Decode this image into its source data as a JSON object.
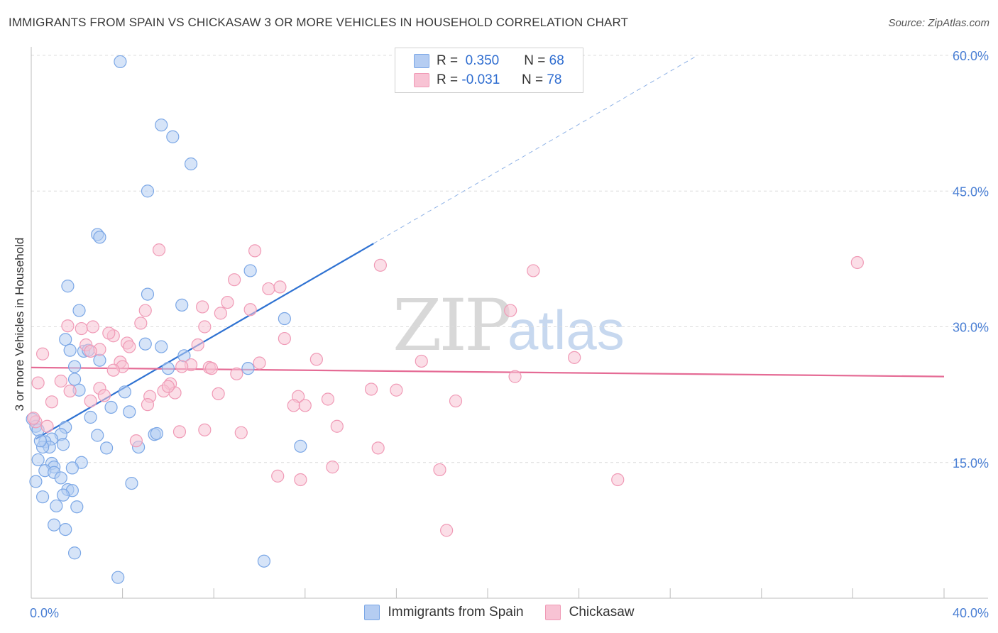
{
  "title": "IMMIGRANTS FROM SPAIN VS CHICKASAW 3 OR MORE VEHICLES IN HOUSEHOLD CORRELATION CHART",
  "source": "Source: ZipAtlas.com",
  "watermark": {
    "a": "ZIP",
    "b": "atlas"
  },
  "legend_stats": [
    {
      "r_label": "R =",
      "r_value": "0.350",
      "n_label": "N =",
      "n_value": "68"
    },
    {
      "r_label": "R =",
      "r_value": "-0.031",
      "n_label": "N =",
      "n_value": "78"
    }
  ],
  "chart_data": {
    "type": "scatter",
    "title": "IMMIGRANTS FROM SPAIN VS CHICKASAW 3 OR MORE VEHICLES IN HOUSEHOLD CORRELATION CHART",
    "xlabel": "",
    "ylabel": "3 or more Vehicles in Household",
    "xlim": [
      0,
      40
    ],
    "ylim": [
      0,
      60
    ],
    "x_tick_labels": [
      {
        "value": 0,
        "label": "0.0%"
      },
      {
        "value": 40,
        "label": "40.0%"
      }
    ],
    "y_tick_labels": [
      {
        "value": 15,
        "label": "15.0%"
      },
      {
        "value": 30,
        "label": "30.0%"
      },
      {
        "value": 45,
        "label": "45.0%"
      },
      {
        "value": 60,
        "label": "60.0%"
      }
    ],
    "x_minor_ticks": [
      0,
      4,
      8,
      12,
      16,
      20,
      24,
      28,
      32,
      36,
      40
    ],
    "legend_position": "bottom",
    "series": [
      {
        "name": "Immigrants from Spain",
        "color": "#7ba7e6",
        "fill": "#b5cdf2",
        "points": [
          [
            3.9,
            59.3
          ],
          [
            5.7,
            52.3
          ],
          [
            6.2,
            51.0
          ],
          [
            7.0,
            48.0
          ],
          [
            5.1,
            45.0
          ],
          [
            2.9,
            40.2
          ],
          [
            3.0,
            39.9
          ],
          [
            9.6,
            36.2
          ],
          [
            1.6,
            34.5
          ],
          [
            5.1,
            33.6
          ],
          [
            6.6,
            32.4
          ],
          [
            2.1,
            31.8
          ],
          [
            11.1,
            30.9
          ],
          [
            1.5,
            28.6
          ],
          [
            5.0,
            28.1
          ],
          [
            5.7,
            27.8
          ],
          [
            1.7,
            27.4
          ],
          [
            2.3,
            27.3
          ],
          [
            2.5,
            27.4
          ],
          [
            6.7,
            26.8
          ],
          [
            3.0,
            26.3
          ],
          [
            1.9,
            25.6
          ],
          [
            6.0,
            25.4
          ],
          [
            9.5,
            25.4
          ],
          [
            1.9,
            24.2
          ],
          [
            2.1,
            23.0
          ],
          [
            4.1,
            22.8
          ],
          [
            3.5,
            21.1
          ],
          [
            4.3,
            20.6
          ],
          [
            2.6,
            20.0
          ],
          [
            0.05,
            19.8
          ],
          [
            0.2,
            19.0
          ],
          [
            1.5,
            18.9
          ],
          [
            0.3,
            18.6
          ],
          [
            1.3,
            18.1
          ],
          [
            2.9,
            18.0
          ],
          [
            5.4,
            18.1
          ],
          [
            5.5,
            18.2
          ],
          [
            0.9,
            17.6
          ],
          [
            0.6,
            17.3
          ],
          [
            1.4,
            17.0
          ],
          [
            0.8,
            16.7
          ],
          [
            0.5,
            16.7
          ],
          [
            3.3,
            16.6
          ],
          [
            4.7,
            16.7
          ],
          [
            11.8,
            16.8
          ],
          [
            0.3,
            15.3
          ],
          [
            2.2,
            15.0
          ],
          [
            0.9,
            14.9
          ],
          [
            1.0,
            14.5
          ],
          [
            1.8,
            14.4
          ],
          [
            0.6,
            14.1
          ],
          [
            1.0,
            13.9
          ],
          [
            1.3,
            13.3
          ],
          [
            0.2,
            12.9
          ],
          [
            4.4,
            12.7
          ],
          [
            1.6,
            12.0
          ],
          [
            1.8,
            11.9
          ],
          [
            1.4,
            11.4
          ],
          [
            0.5,
            11.2
          ],
          [
            1.1,
            10.2
          ],
          [
            2.0,
            10.1
          ],
          [
            1.0,
            8.1
          ],
          [
            1.5,
            7.6
          ],
          [
            1.9,
            5.0
          ],
          [
            10.2,
            4.1
          ],
          [
            3.8,
            2.3
          ],
          [
            0.4,
            17.4
          ]
        ],
        "trendline": {
          "x0": 0.2,
          "y0": 17.6,
          "x1": 15.0,
          "y1": 39.2,
          "dashed_to": {
            "x": 29.2,
            "y": 60.0
          }
        }
      },
      {
        "name": "Chickasaw",
        "color": "#f09ab6",
        "fill": "#f8c3d4",
        "points": [
          [
            5.6,
            38.5
          ],
          [
            9.8,
            38.4
          ],
          [
            15.3,
            36.8
          ],
          [
            22.0,
            36.2
          ],
          [
            36.2,
            37.1
          ],
          [
            8.9,
            35.2
          ],
          [
            10.4,
            34.2
          ],
          [
            10.9,
            34.4
          ],
          [
            8.6,
            32.7
          ],
          [
            7.5,
            32.2
          ],
          [
            5.0,
            31.8
          ],
          [
            9.6,
            31.9
          ],
          [
            8.3,
            31.5
          ],
          [
            21.0,
            31.8
          ],
          [
            4.8,
            30.4
          ],
          [
            1.6,
            30.1
          ],
          [
            2.2,
            29.8
          ],
          [
            2.7,
            30.0
          ],
          [
            7.6,
            30.0
          ],
          [
            3.6,
            29.0
          ],
          [
            3.4,
            29.3
          ],
          [
            11.1,
            28.7
          ],
          [
            4.2,
            28.2
          ],
          [
            2.4,
            28.0
          ],
          [
            7.3,
            28.0
          ],
          [
            4.3,
            27.8
          ],
          [
            3.0,
            27.5
          ],
          [
            2.6,
            27.3
          ],
          [
            0.5,
            27.0
          ],
          [
            23.8,
            26.6
          ],
          [
            12.5,
            26.4
          ],
          [
            17.1,
            26.2
          ],
          [
            10.0,
            26.0
          ],
          [
            3.9,
            26.1
          ],
          [
            4.0,
            25.6
          ],
          [
            7.0,
            25.8
          ],
          [
            6.6,
            25.6
          ],
          [
            7.8,
            25.5
          ],
          [
            7.9,
            25.4
          ],
          [
            3.6,
            25.2
          ],
          [
            9.0,
            24.8
          ],
          [
            21.2,
            24.5
          ],
          [
            1.3,
            24.0
          ],
          [
            0.3,
            23.8
          ],
          [
            6.1,
            23.7
          ],
          [
            3.0,
            23.2
          ],
          [
            14.9,
            23.1
          ],
          [
            16.0,
            23.0
          ],
          [
            1.7,
            22.9
          ],
          [
            5.8,
            22.9
          ],
          [
            6.3,
            22.7
          ],
          [
            8.2,
            22.6
          ],
          [
            5.2,
            22.3
          ],
          [
            11.7,
            22.3
          ],
          [
            13.0,
            22.0
          ],
          [
            18.6,
            21.8
          ],
          [
            0.9,
            21.7
          ],
          [
            5.1,
            21.4
          ],
          [
            11.5,
            21.3
          ],
          [
            12.0,
            21.3
          ],
          [
            2.6,
            21.8
          ],
          [
            0.2,
            19.5
          ],
          [
            0.7,
            19.0
          ],
          [
            13.4,
            19.0
          ],
          [
            7.6,
            18.6
          ],
          [
            6.5,
            18.4
          ],
          [
            9.2,
            18.3
          ],
          [
            4.6,
            17.4
          ],
          [
            15.2,
            16.6
          ],
          [
            13.2,
            14.5
          ],
          [
            17.9,
            14.2
          ],
          [
            10.8,
            13.5
          ],
          [
            11.8,
            13.1
          ],
          [
            25.7,
            13.1
          ],
          [
            18.2,
            7.5
          ],
          [
            0.1,
            19.9
          ],
          [
            3.2,
            22.4
          ],
          [
            6.0,
            23.4
          ]
        ],
        "trendline": {
          "x0": 0.0,
          "y0": 25.5,
          "x1": 40.0,
          "y1": 24.5
        }
      }
    ]
  }
}
